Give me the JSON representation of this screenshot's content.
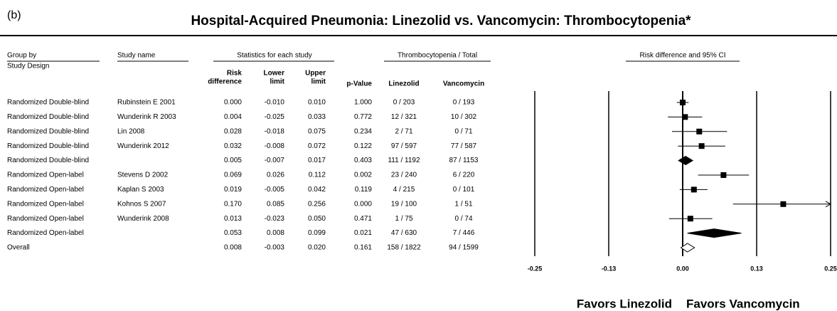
{
  "chart_data": {
    "type": "forest",
    "panel_label": "(b)",
    "title": "Hospital-Acquired Pneumonia: Linezolid vs. Vancomycin: Thrombocytopenia*",
    "headers": {
      "group_by": "Group by",
      "study_design": "Study Design",
      "study_name": "Study name",
      "statistics": "Statistics for each study",
      "risk_difference": [
        "Risk",
        "difference"
      ],
      "lower_limit": [
        "Lower",
        "limit"
      ],
      "upper_limit": [
        "Upper",
        "limit"
      ],
      "p_value": "p-Value",
      "thrombocytopenia": "Thrombocytopenia / Total",
      "linezolid": "Linezolid",
      "vancomycin": "Vancomycin",
      "plot": "Risk difference and 95% CI"
    },
    "study_design": [
      "Randomized Double-blind",
      "Randomized Double-blind",
      "Randomized Double-blind",
      "Randomized Double-blind",
      "Randomized Double-blind",
      "Randomized Open-label",
      "Randomized Open-label",
      "Randomized Open-label",
      "Randomized Open-label",
      "Randomized Open-label",
      "Overall"
    ],
    "study_name": [
      "Rubinstein E 2001",
      "Wunderink R 2003",
      "Lin 2008",
      "Wunderink 2012",
      null,
      "Stevens D 2002",
      "Kaplan S 2003",
      "Kohnos S 2007",
      "Wunderink 2008",
      null,
      null
    ],
    "risk_difference": [
      0,
      0.004,
      0.028,
      0.032,
      0.005,
      0.069,
      0.019,
      0.17,
      0.013,
      0.053,
      0.008
    ],
    "risk_difference_labels": [
      "0.000",
      "0.004",
      "0.028",
      "0.032",
      "0.005",
      "0.069",
      "0.019",
      "0.170",
      "0.013",
      "0.053",
      "0.008"
    ],
    "lower_limit": [
      -0.01,
      -0.025,
      -0.018,
      -0.008,
      -0.007,
      0.026,
      -0.005,
      0.085,
      -0.023,
      0.008,
      -0.003
    ],
    "lower_limit_labels": [
      "-0.010",
      "-0.025",
      "-0.018",
      "-0.008",
      "-0.007",
      "0.026",
      "-0.005",
      "0.085",
      "-0.023",
      "0.008",
      "-0.003"
    ],
    "upper_limit": [
      0.01,
      0.033,
      0.075,
      0.072,
      0.017,
      0.112,
      0.042,
      0.256,
      0.05,
      0.099,
      0.02
    ],
    "upper_limit_labels": [
      "0.010",
      "0.033",
      "0.075",
      "0.072",
      "0.017",
      "0.112",
      "0.042",
      "0.256",
      "0.050",
      "0.099",
      "0.020"
    ],
    "p_value": [
      "1.000",
      "0.772",
      "0.234",
      "0.122",
      "0.403",
      "0.002",
      "0.119",
      "0.000",
      "0.471",
      "0.021",
      "0.161"
    ],
    "linezolid": [
      "0 / 203",
      "12 / 321",
      "2 / 71",
      "97 / 597",
      "111 / 1192",
      "23 / 240",
      "4 / 215",
      "19 / 100",
      "1 / 75",
      "47 / 630",
      "158 / 1822"
    ],
    "vancomycin": [
      "0 / 193",
      "10 / 302",
      "0 / 71",
      "77 / 587",
      "87 / 1153",
      "6 / 220",
      "0 / 101",
      "1 / 51",
      "0 / 74",
      "7 / 446",
      "94 / 1599"
    ],
    "markers": [
      "square",
      "square",
      "square",
      "square",
      "diamond",
      "square",
      "square",
      "square",
      "square",
      "diamond",
      "hollow-diamond"
    ],
    "color": "#000000",
    "xlim": [
      -0.25,
      0.25
    ],
    "xticks": [
      {
        "value": -0.25,
        "label": "-0.25"
      },
      {
        "value": -0.125,
        "label": "-0.13"
      },
      {
        "value": 0,
        "label": "0.00"
      },
      {
        "value": 0.125,
        "label": "0.13"
      },
      {
        "value": 0.25,
        "label": "0.25"
      }
    ],
    "favors_left": "Favors Linezolid",
    "favors_right": "Favors Vancomycin"
  }
}
